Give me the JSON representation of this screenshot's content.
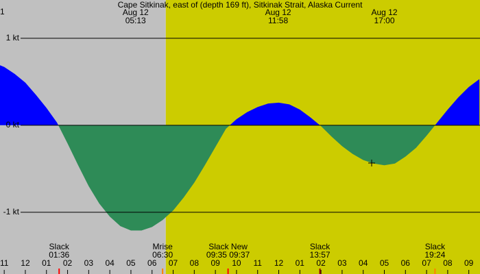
{
  "chart_data": {
    "type": "area",
    "title": "Cape Sitkinak, east of (depth 169 ft), Sitkinak Strait, Alaska Current",
    "corner_label": "1",
    "xlim": [
      -1.2,
      21.53
    ],
    "ylim": [
      -1.71,
      1.44
    ],
    "yticks": [
      {
        "value": 1,
        "label": "1 kt"
      },
      {
        "value": 0,
        "label": "0 kt"
      },
      {
        "value": -1,
        "label": "-1 kt"
      }
    ],
    "xticks": [
      {
        "value": -1,
        "label": "11"
      },
      {
        "value": 0,
        "label": "12"
      },
      {
        "value": 1,
        "label": "01"
      },
      {
        "value": 2,
        "label": "02"
      },
      {
        "value": 3,
        "label": "03"
      },
      {
        "value": 4,
        "label": "04"
      },
      {
        "value": 5,
        "label": "05"
      },
      {
        "value": 6,
        "label": "06"
      },
      {
        "value": 7,
        "label": "07"
      },
      {
        "value": 8,
        "label": "08"
      },
      {
        "value": 9,
        "label": "09"
      },
      10,
      11,
      {
        "value": 12,
        "label": "12"
      },
      {
        "value": 13,
        "label": "01"
      },
      {
        "value": 14,
        "label": "02"
      },
      {
        "value": 15,
        "label": "03"
      },
      {
        "value": 16,
        "label": "04"
      },
      {
        "value": 17,
        "label": "05"
      },
      {
        "value": 18,
        "label": "06"
      },
      {
        "value": 19,
        "label": "07"
      },
      {
        "value": 20,
        "label": "08"
      },
      {
        "value": 21,
        "label": "09"
      }
    ],
    "background": [
      {
        "from": -1.2,
        "to": 6.65,
        "color": "#c0c0c0"
      },
      {
        "from": 6.65,
        "to": 21.53,
        "color": "#cccc00"
      }
    ],
    "flood_color": "#0000ff",
    "ebb_color": "#2e8b57",
    "x": [
      -1.2,
      -1,
      -0.5,
      0,
      0.5,
      1,
      1.5,
      2,
      2.5,
      3,
      3.5,
      4,
      4.5,
      5,
      5.5,
      6,
      6.5,
      7,
      7.5,
      8,
      8.5,
      9,
      9.5,
      10,
      10.5,
      11,
      11.5,
      12,
      12.5,
      13,
      13.5,
      14,
      14.5,
      15,
      15.5,
      16,
      16.5,
      17,
      17.5,
      18,
      18.5,
      19,
      19.5,
      20,
      20.5,
      21,
      21.5
    ],
    "values": [
      0.69,
      0.67,
      0.59,
      0.49,
      0.35,
      0.2,
      0.03,
      -0.21,
      -0.46,
      -0.7,
      -0.9,
      -1.05,
      -1.16,
      -1.21,
      -1.21,
      -1.17,
      -1.09,
      -0.98,
      -0.83,
      -0.66,
      -0.46,
      -0.25,
      -0.04,
      0.07,
      0.15,
      0.21,
      0.25,
      0.26,
      0.24,
      0.18,
      0.09,
      -0.01,
      -0.13,
      -0.24,
      -0.33,
      -0.4,
      -0.44,
      -0.46,
      -0.44,
      -0.36,
      -0.26,
      -0.12,
      0.03,
      0.18,
      0.32,
      0.44,
      0.53
    ],
    "top_labels": [
      {
        "date": "Aug 12",
        "time": "05:13",
        "x": 5.22
      },
      {
        "date": "Aug 12",
        "time": "11:58",
        "x": 11.97
      },
      {
        "date": "Aug 12",
        "time": "17:00",
        "x": 17.0
      }
    ],
    "events": [
      {
        "label": "Slack",
        "time": "01:36",
        "x": 1.6,
        "color": "#ff0000"
      },
      {
        "label": "Mrise",
        "time": "06:30",
        "x": 6.5,
        "color": "#ff8000"
      },
      {
        "label": "Slack New",
        "time": "09:35 09:37",
        "x": 9.6,
        "color": "#ff0000"
      },
      {
        "label": "Slack",
        "time": "13:57",
        "x": 13.95,
        "color": "#990000"
      },
      {
        "label": "Slack",
        "time": "19:24",
        "x": 19.4,
        "color": "#ff8000"
      }
    ]
  }
}
